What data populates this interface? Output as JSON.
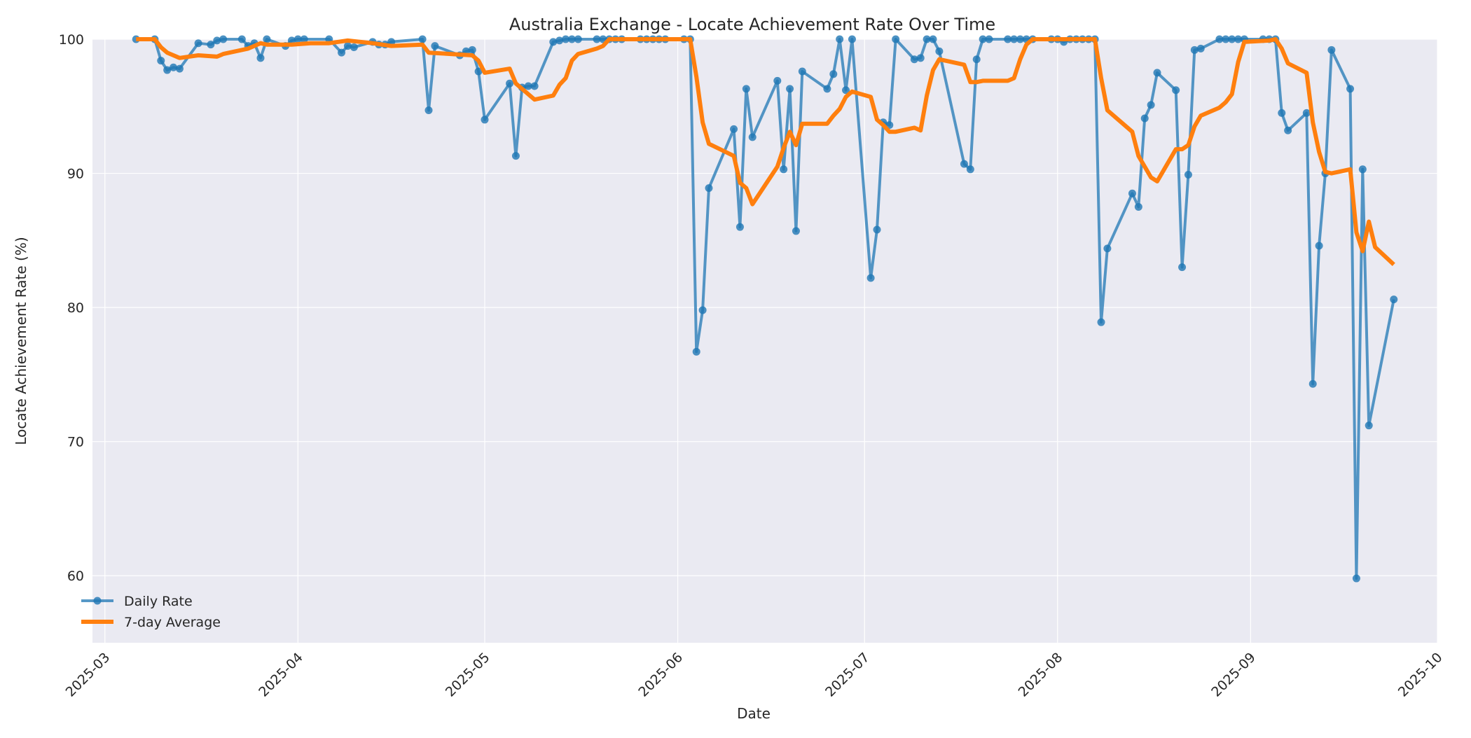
{
  "chart_data": {
    "type": "line",
    "title": "Australia Exchange - Locate Achievement Rate Over Time",
    "xlabel": "Date",
    "ylabel": "Locate Achievement Rate (%)",
    "ylim": [
      55,
      100
    ],
    "y_ticks": [
      60,
      70,
      80,
      90,
      100
    ],
    "x_ticks": [
      "2025-03",
      "2025-04",
      "2025-05",
      "2025-06",
      "2025-07",
      "2025-08",
      "2025-09",
      "2025-10"
    ],
    "xlim": [
      "2025-02-27",
      "2025-10-01"
    ],
    "grid": true,
    "legend_position": "lower left",
    "legend": [
      "Daily Rate",
      "7-day Average"
    ],
    "colors": {
      "daily": "#1f77b4",
      "avg": "#ff7f0e",
      "background": "#eaeaf2",
      "grid": "#ffffff"
    },
    "series": [
      {
        "name": "Daily Rate",
        "style": "line+markers",
        "points": [
          [
            "2025-03-06",
            100
          ],
          [
            "2025-03-09",
            100
          ],
          [
            "2025-03-10",
            98.4
          ],
          [
            "2025-03-11",
            97.7
          ],
          [
            "2025-03-12",
            97.9
          ],
          [
            "2025-03-13",
            97.8
          ],
          [
            "2025-03-16",
            99.7
          ],
          [
            "2025-03-18",
            99.6
          ],
          [
            "2025-03-19",
            99.9
          ],
          [
            "2025-03-20",
            100
          ],
          [
            "2025-03-23",
            100
          ],
          [
            "2025-03-24",
            99.5
          ],
          [
            "2025-03-25",
            99.7
          ],
          [
            "2025-03-26",
            98.6
          ],
          [
            "2025-03-27",
            100
          ],
          [
            "2025-03-30",
            99.5
          ],
          [
            "2025-03-31",
            99.9
          ],
          [
            "2025-04-01",
            100
          ],
          [
            "2025-04-02",
            100
          ],
          [
            "2025-04-06",
            100
          ],
          [
            "2025-04-08",
            99.0
          ],
          [
            "2025-04-09",
            99.5
          ],
          [
            "2025-04-10",
            99.4
          ],
          [
            "2025-04-13",
            99.8
          ],
          [
            "2025-04-14",
            99.6
          ],
          [
            "2025-04-15",
            99.6
          ],
          [
            "2025-04-16",
            99.8
          ],
          [
            "2025-04-21",
            100
          ],
          [
            "2025-04-22",
            94.7
          ],
          [
            "2025-04-23",
            99.5
          ],
          [
            "2025-04-27",
            98.8
          ],
          [
            "2025-04-28",
            99.1
          ],
          [
            "2025-04-29",
            99.2
          ],
          [
            "2025-04-30",
            97.6
          ],
          [
            "2025-05-01",
            94.0
          ],
          [
            "2025-05-05",
            96.7
          ],
          [
            "2025-05-06",
            91.3
          ],
          [
            "2025-05-07",
            96.4
          ],
          [
            "2025-05-08",
            96.5
          ],
          [
            "2025-05-09",
            96.5
          ],
          [
            "2025-05-12",
            99.8
          ],
          [
            "2025-05-13",
            99.9
          ],
          [
            "2025-05-14",
            100
          ],
          [
            "2025-05-15",
            100
          ],
          [
            "2025-05-16",
            100
          ],
          [
            "2025-05-19",
            100
          ],
          [
            "2025-05-20",
            100
          ],
          [
            "2025-05-21",
            100
          ],
          [
            "2025-05-22",
            100
          ],
          [
            "2025-05-23",
            100
          ],
          [
            "2025-05-26",
            100
          ],
          [
            "2025-05-27",
            100
          ],
          [
            "2025-05-28",
            100
          ],
          [
            "2025-05-29",
            100
          ],
          [
            "2025-05-30",
            100
          ],
          [
            "2025-06-02",
            100
          ],
          [
            "2025-06-03",
            100
          ],
          [
            "2025-06-04",
            76.7
          ],
          [
            "2025-06-05",
            79.8
          ],
          [
            "2025-06-06",
            88.9
          ],
          [
            "2025-06-10",
            93.3
          ],
          [
            "2025-06-11",
            86.0
          ],
          [
            "2025-06-12",
            96.3
          ],
          [
            "2025-06-13",
            92.7
          ],
          [
            "2025-06-17",
            96.9
          ],
          [
            "2025-06-18",
            90.3
          ],
          [
            "2025-06-19",
            96.3
          ],
          [
            "2025-06-20",
            85.7
          ],
          [
            "2025-06-21",
            97.6
          ],
          [
            "2025-06-25",
            96.3
          ],
          [
            "2025-06-26",
            97.4
          ],
          [
            "2025-06-27",
            100
          ],
          [
            "2025-06-28",
            96.2
          ],
          [
            "2025-06-29",
            100
          ],
          [
            "2025-07-02",
            82.2
          ],
          [
            "2025-07-03",
            85.8
          ],
          [
            "2025-07-04",
            93.8
          ],
          [
            "2025-07-05",
            93.6
          ],
          [
            "2025-07-06",
            100
          ],
          [
            "2025-07-09",
            98.5
          ],
          [
            "2025-07-10",
            98.6
          ],
          [
            "2025-07-11",
            100
          ],
          [
            "2025-07-12",
            100
          ],
          [
            "2025-07-13",
            99.1
          ],
          [
            "2025-07-17",
            90.7
          ],
          [
            "2025-07-18",
            90.3
          ],
          [
            "2025-07-19",
            98.5
          ],
          [
            "2025-07-20",
            100
          ],
          [
            "2025-07-21",
            100
          ],
          [
            "2025-07-24",
            100
          ],
          [
            "2025-07-25",
            100
          ],
          [
            "2025-07-26",
            100
          ],
          [
            "2025-07-27",
            100
          ],
          [
            "2025-07-28",
            100
          ],
          [
            "2025-07-31",
            100
          ],
          [
            "2025-08-01",
            100
          ],
          [
            "2025-08-02",
            99.8
          ],
          [
            "2025-08-03",
            100
          ],
          [
            "2025-08-04",
            100
          ],
          [
            "2025-08-05",
            100
          ],
          [
            "2025-08-06",
            100
          ],
          [
            "2025-08-07",
            100
          ],
          [
            "2025-08-08",
            78.9
          ],
          [
            "2025-08-09",
            84.4
          ],
          [
            "2025-08-13",
            88.5
          ],
          [
            "2025-08-14",
            87.5
          ],
          [
            "2025-08-15",
            94.1
          ],
          [
            "2025-08-16",
            95.1
          ],
          [
            "2025-08-17",
            97.5
          ],
          [
            "2025-08-20",
            96.2
          ],
          [
            "2025-08-21",
            83.0
          ],
          [
            "2025-08-22",
            89.9
          ],
          [
            "2025-08-23",
            99.2
          ],
          [
            "2025-08-24",
            99.3
          ],
          [
            "2025-08-27",
            100
          ],
          [
            "2025-08-28",
            100
          ],
          [
            "2025-08-29",
            100
          ],
          [
            "2025-08-30",
            100
          ],
          [
            "2025-08-31",
            100
          ],
          [
            "2025-09-03",
            100
          ],
          [
            "2025-09-04",
            100
          ],
          [
            "2025-09-05",
            100
          ],
          [
            "2025-09-06",
            94.5
          ],
          [
            "2025-09-07",
            93.2
          ],
          [
            "2025-09-10",
            94.5
          ],
          [
            "2025-09-11",
            74.3
          ],
          [
            "2025-09-12",
            84.6
          ],
          [
            "2025-09-13",
            90.0
          ],
          [
            "2025-09-14",
            99.2
          ],
          [
            "2025-09-17",
            96.3
          ],
          [
            "2025-09-18",
            59.8
          ],
          [
            "2025-09-19",
            90.3
          ],
          [
            "2025-09-20",
            71.2
          ],
          [
            "2025-09-24",
            80.6
          ]
        ]
      },
      {
        "name": "7-day Average",
        "style": "line",
        "points": [
          [
            "2025-03-06",
            100
          ],
          [
            "2025-03-09",
            100
          ],
          [
            "2025-03-10",
            99.4
          ],
          [
            "2025-03-11",
            99.0
          ],
          [
            "2025-03-12",
            98.8
          ],
          [
            "2025-03-13",
            98.6
          ],
          [
            "2025-03-16",
            98.8
          ],
          [
            "2025-03-19",
            98.7
          ],
          [
            "2025-03-20",
            98.9
          ],
          [
            "2025-03-24",
            99.3
          ],
          [
            "2025-03-26",
            99.7
          ],
          [
            "2025-03-27",
            99.6
          ],
          [
            "2025-03-31",
            99.6
          ],
          [
            "2025-04-03",
            99.7
          ],
          [
            "2025-04-06",
            99.7
          ],
          [
            "2025-04-09",
            99.9
          ],
          [
            "2025-04-13",
            99.7
          ],
          [
            "2025-04-16",
            99.5
          ],
          [
            "2025-04-21",
            99.6
          ],
          [
            "2025-04-22",
            99.0
          ],
          [
            "2025-04-29",
            98.8
          ],
          [
            "2025-04-30",
            98.4
          ],
          [
            "2025-05-01",
            97.5
          ],
          [
            "2025-05-05",
            97.8
          ],
          [
            "2025-05-06",
            96.7
          ],
          [
            "2025-05-09",
            95.5
          ],
          [
            "2025-05-12",
            95.8
          ],
          [
            "2025-05-13",
            96.6
          ],
          [
            "2025-05-14",
            97.1
          ],
          [
            "2025-05-15",
            98.4
          ],
          [
            "2025-05-16",
            98.9
          ],
          [
            "2025-05-19",
            99.3
          ],
          [
            "2025-05-20",
            99.5
          ],
          [
            "2025-05-21",
            100
          ],
          [
            "2025-06-03",
            100
          ],
          [
            "2025-06-04",
            97.2
          ],
          [
            "2025-06-05",
            93.8
          ],
          [
            "2025-06-06",
            92.2
          ],
          [
            "2025-06-10",
            91.3
          ],
          [
            "2025-06-11",
            89.3
          ],
          [
            "2025-06-12",
            88.9
          ],
          [
            "2025-06-13",
            87.7
          ],
          [
            "2025-06-17",
            90.5
          ],
          [
            "2025-06-18",
            91.9
          ],
          [
            "2025-06-19",
            93.1
          ],
          [
            "2025-06-20",
            92.1
          ],
          [
            "2025-06-21",
            93.7
          ],
          [
            "2025-06-25",
            93.7
          ],
          [
            "2025-06-26",
            94.3
          ],
          [
            "2025-06-27",
            94.8
          ],
          [
            "2025-06-28",
            95.7
          ],
          [
            "2025-06-29",
            96.1
          ],
          [
            "2025-07-02",
            95.7
          ],
          [
            "2025-07-03",
            94.0
          ],
          [
            "2025-07-04",
            93.6
          ],
          [
            "2025-07-05",
            93.1
          ],
          [
            "2025-07-06",
            93.1
          ],
          [
            "2025-07-09",
            93.4
          ],
          [
            "2025-07-10",
            93.2
          ],
          [
            "2025-07-11",
            95.8
          ],
          [
            "2025-07-12",
            97.7
          ],
          [
            "2025-07-13",
            98.5
          ],
          [
            "2025-07-17",
            98.1
          ],
          [
            "2025-07-18",
            96.8
          ],
          [
            "2025-07-19",
            96.8
          ],
          [
            "2025-07-20",
            96.9
          ],
          [
            "2025-07-24",
            96.9
          ],
          [
            "2025-07-25",
            97.1
          ],
          [
            "2025-07-26",
            98.5
          ],
          [
            "2025-07-27",
            99.6
          ],
          [
            "2025-07-28",
            100
          ],
          [
            "2025-08-07",
            100
          ],
          [
            "2025-08-08",
            97.1
          ],
          [
            "2025-08-09",
            94.7
          ],
          [
            "2025-08-13",
            93.1
          ],
          [
            "2025-08-14",
            91.3
          ],
          [
            "2025-08-15",
            90.5
          ],
          [
            "2025-08-16",
            89.7
          ],
          [
            "2025-08-17",
            89.4
          ],
          [
            "2025-08-20",
            91.8
          ],
          [
            "2025-08-21",
            91.8
          ],
          [
            "2025-08-22",
            92.1
          ],
          [
            "2025-08-23",
            93.5
          ],
          [
            "2025-08-24",
            94.3
          ],
          [
            "2025-08-27",
            94.9
          ],
          [
            "2025-08-28",
            95.3
          ],
          [
            "2025-08-29",
            95.9
          ],
          [
            "2025-08-30",
            98.3
          ],
          [
            "2025-08-31",
            99.8
          ],
          [
            "2025-09-04",
            99.9
          ],
          [
            "2025-09-05",
            100
          ],
          [
            "2025-09-06",
            99.3
          ],
          [
            "2025-09-07",
            98.2
          ],
          [
            "2025-09-10",
            97.5
          ],
          [
            "2025-09-11",
            93.8
          ],
          [
            "2025-09-12",
            91.6
          ],
          [
            "2025-09-13",
            90.1
          ],
          [
            "2025-09-14",
            90.0
          ],
          [
            "2025-09-17",
            90.3
          ],
          [
            "2025-09-18",
            85.6
          ],
          [
            "2025-09-19",
            84.2
          ],
          [
            "2025-09-20",
            86.4
          ],
          [
            "2025-09-21",
            84.5
          ],
          [
            "2025-09-24",
            83.2
          ]
        ]
      }
    ]
  }
}
